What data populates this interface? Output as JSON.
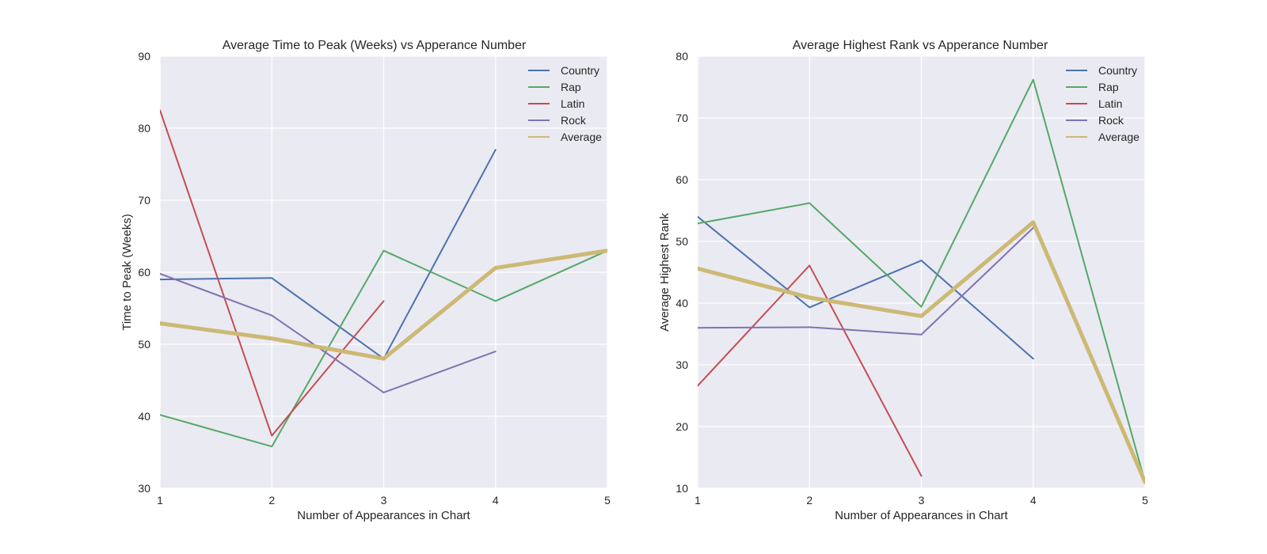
{
  "chart_data": [
    {
      "type": "line",
      "title": "Average Time to Peak (Weeks) vs Apperance Number",
      "xlabel": "Number of Appearances in Chart",
      "ylabel": "Time to Peak (Weeks)",
      "xlim": [
        1,
        5
      ],
      "ylim": [
        30,
        90
      ],
      "xticks": [
        1,
        2,
        3,
        4,
        5
      ],
      "yticks": [
        30,
        40,
        50,
        60,
        70,
        80,
        90
      ],
      "grid": true,
      "legend_position": "top-right",
      "series": [
        {
          "name": "Country",
          "color": "#4c72b0",
          "x": [
            1,
            2,
            3,
            4
          ],
          "values": [
            59,
            59.2,
            48,
            77
          ]
        },
        {
          "name": "Rap",
          "color": "#55a868",
          "x": [
            1,
            2,
            3,
            4,
            5
          ],
          "values": [
            40.2,
            35.8,
            63,
            56,
            63
          ]
        },
        {
          "name": "Latin",
          "color": "#c44e52",
          "x": [
            1,
            2,
            3
          ],
          "values": [
            82.5,
            37.3,
            56
          ]
        },
        {
          "name": "Rock",
          "color": "#8172b2",
          "x": [
            1,
            2,
            3,
            4
          ],
          "values": [
            59.8,
            54,
            43.3,
            49
          ]
        },
        {
          "name": "Average",
          "color": "#ccb974",
          "emphasis": true,
          "x": [
            1,
            2,
            3,
            4,
            5
          ],
          "values": [
            52.9,
            50.8,
            48,
            60.6,
            63
          ]
        }
      ]
    },
    {
      "type": "line",
      "title": "Average Highest Rank vs Apperance Number",
      "xlabel": "Number of Appearances in Chart",
      "ylabel": "Average Highest Rank",
      "xlim": [
        1,
        5
      ],
      "ylim": [
        10,
        80
      ],
      "xticks": [
        1,
        2,
        3,
        4,
        5
      ],
      "yticks": [
        10,
        20,
        30,
        40,
        50,
        60,
        70,
        80
      ],
      "grid": true,
      "legend_position": "top-right",
      "series": [
        {
          "name": "Country",
          "color": "#4c72b0",
          "x": [
            1,
            2,
            3,
            4
          ],
          "values": [
            54,
            39.3,
            46.9,
            31
          ]
        },
        {
          "name": "Rap",
          "color": "#55a868",
          "x": [
            1,
            2,
            3,
            4,
            5
          ],
          "values": [
            52.9,
            56.2,
            39.4,
            76.2,
            11
          ]
        },
        {
          "name": "Latin",
          "color": "#c44e52",
          "x": [
            1,
            2,
            3
          ],
          "values": [
            26.6,
            46.1,
            12
          ]
        },
        {
          "name": "Rock",
          "color": "#8172b2",
          "x": [
            1,
            2,
            3,
            4
          ],
          "values": [
            36,
            36.1,
            34.9,
            52.2
          ]
        },
        {
          "name": "Average",
          "color": "#ccb974",
          "emphasis": true,
          "x": [
            1,
            2,
            3,
            4,
            5
          ],
          "values": [
            45.6,
            40.9,
            37.9,
            53.1,
            11
          ]
        }
      ]
    }
  ]
}
